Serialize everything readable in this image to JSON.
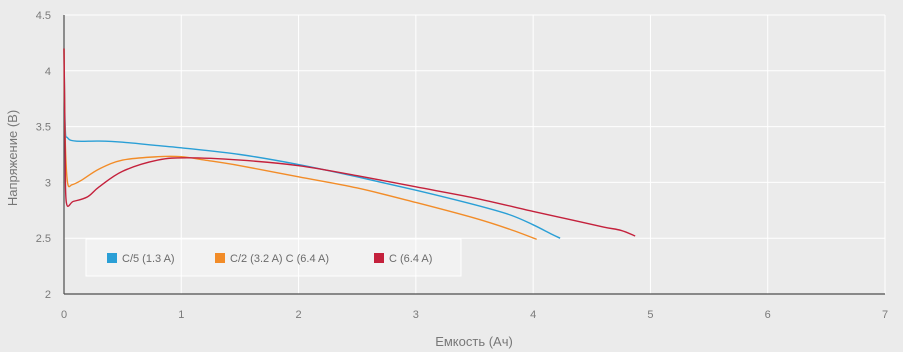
{
  "chart_data": {
    "type": "line",
    "title": "",
    "xlabel": "Емкость (Ач)",
    "ylabel": "Напряжение (В)",
    "xlim": [
      0,
      7
    ],
    "ylim": [
      2,
      4.5
    ],
    "x_ticks": [
      "0",
      "1",
      "2",
      "3",
      "4",
      "5",
      "6",
      "7"
    ],
    "y_ticks": [
      "2",
      "2.5",
      "3",
      "3.5",
      "4",
      "4.5"
    ],
    "grid": true,
    "legend_position": "bottom-left",
    "series": [
      {
        "name": "C/5 (1.3 A)",
        "color": "#2a9fd6",
        "points": [
          [
            0,
            4.2
          ],
          [
            0.01,
            3.5
          ],
          [
            0.03,
            3.4
          ],
          [
            0.1,
            3.37
          ],
          [
            0.3,
            3.37
          ],
          [
            0.5,
            3.36
          ],
          [
            0.8,
            3.33
          ],
          [
            1,
            3.31
          ],
          [
            1.5,
            3.25
          ],
          [
            2,
            3.16
          ],
          [
            2.5,
            3.05
          ],
          [
            3,
            2.93
          ],
          [
            3.5,
            2.8
          ],
          [
            3.8,
            2.71
          ],
          [
            4,
            2.62
          ],
          [
            4.15,
            2.54
          ],
          [
            4.23,
            2.5
          ]
        ]
      },
      {
        "name": "C/2 (3.2 A) C (6.4 A)",
        "color": "#f28c28",
        "points": [
          [
            0,
            4.2
          ],
          [
            0.01,
            3.4
          ],
          [
            0.03,
            3.0
          ],
          [
            0.07,
            2.98
          ],
          [
            0.15,
            3.02
          ],
          [
            0.3,
            3.12
          ],
          [
            0.5,
            3.2
          ],
          [
            0.8,
            3.23
          ],
          [
            1,
            3.23
          ],
          [
            1.2,
            3.2
          ],
          [
            1.5,
            3.15
          ],
          [
            2,
            3.05
          ],
          [
            2.5,
            2.95
          ],
          [
            3,
            2.82
          ],
          [
            3.5,
            2.68
          ],
          [
            3.8,
            2.58
          ],
          [
            4.03,
            2.49
          ]
        ]
      },
      {
        "name": "C (6.4 A)",
        "color": "#c4213c",
        "points": [
          [
            0,
            4.2
          ],
          [
            0.01,
            3.3
          ],
          [
            0.02,
            2.82
          ],
          [
            0.08,
            2.83
          ],
          [
            0.2,
            2.87
          ],
          [
            0.3,
            2.96
          ],
          [
            0.5,
            3.1
          ],
          [
            0.8,
            3.2
          ],
          [
            1.05,
            3.22
          ],
          [
            1.5,
            3.2
          ],
          [
            2,
            3.15
          ],
          [
            2.5,
            3.06
          ],
          [
            3,
            2.96
          ],
          [
            3.5,
            2.86
          ],
          [
            4,
            2.74
          ],
          [
            4.3,
            2.67
          ],
          [
            4.6,
            2.6
          ],
          [
            4.75,
            2.57
          ],
          [
            4.87,
            2.52
          ]
        ]
      }
    ]
  }
}
